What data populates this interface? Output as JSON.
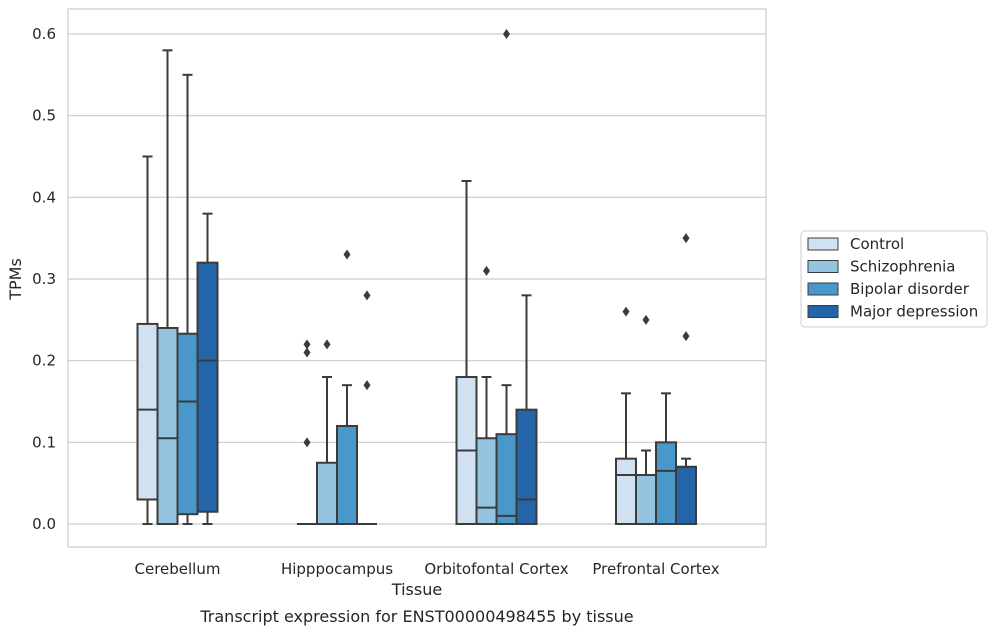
{
  "chart_data": {
    "type": "box",
    "title": "",
    "caption": "Transcript expression for ENST00000498455 by tissue",
    "xlabel": "Tissue",
    "ylabel": "TPMs",
    "ylim": [
      -0.03,
      0.63
    ],
    "yticks": [
      "0.0",
      "0.1",
      "0.2",
      "0.3",
      "0.4",
      "0.5",
      "0.6"
    ],
    "grid": "horizontal",
    "legend_position": "right",
    "categories": [
      "Cerebellum",
      "Hipppocampus",
      "Orbitofontal Cortex",
      "Prefrontal Cortex"
    ],
    "series": [
      {
        "name": "Control",
        "color": "#d0e1f2",
        "boxes": [
          {
            "min": 0.0,
            "q1": 0.03,
            "median": 0.14,
            "q3": 0.245,
            "max": 0.45,
            "outliers": []
          },
          {
            "min": 0.0,
            "q1": 0.0,
            "median": 0.0,
            "q3": 0.0,
            "max": 0.0,
            "outliers": [
              0.1,
              0.21,
              0.22
            ]
          },
          {
            "min": 0.0,
            "q1": 0.0,
            "median": 0.09,
            "q3": 0.18,
            "max": 0.42,
            "outliers": []
          },
          {
            "min": 0.0,
            "q1": 0.0,
            "median": 0.06,
            "q3": 0.08,
            "max": 0.16,
            "outliers": [
              0.26
            ]
          }
        ]
      },
      {
        "name": "Schizophrenia",
        "color": "#94c4df",
        "boxes": [
          {
            "min": 0.0,
            "q1": 0.0,
            "median": 0.105,
            "q3": 0.24,
            "max": 0.58,
            "outliers": []
          },
          {
            "min": 0.0,
            "q1": 0.0,
            "median": 0.0,
            "q3": 0.075,
            "max": 0.18,
            "outliers": [
              0.22
            ]
          },
          {
            "min": 0.0,
            "q1": 0.0,
            "median": 0.02,
            "q3": 0.105,
            "max": 0.18,
            "outliers": [
              0.31
            ]
          },
          {
            "min": 0.0,
            "q1": 0.0,
            "median": 0.06,
            "q3": 0.06,
            "max": 0.09,
            "outliers": [
              0.25
            ]
          }
        ]
      },
      {
        "name": "Bipolar disorder",
        "color": "#4a98c9",
        "boxes": [
          {
            "min": 0.0,
            "q1": 0.012,
            "median": 0.15,
            "q3": 0.233,
            "max": 0.55,
            "outliers": []
          },
          {
            "min": 0.0,
            "q1": 0.0,
            "median": 0.0,
            "q3": 0.12,
            "max": 0.17,
            "outliers": [
              0.33
            ]
          },
          {
            "min": 0.0,
            "q1": 0.0,
            "median": 0.01,
            "q3": 0.11,
            "max": 0.17,
            "outliers": [
              0.6
            ]
          },
          {
            "min": 0.0,
            "q1": 0.0,
            "median": 0.065,
            "q3": 0.1,
            "max": 0.16,
            "outliers": []
          }
        ]
      },
      {
        "name": "Major depression",
        "color": "#2464a8",
        "boxes": [
          {
            "min": 0.0,
            "q1": 0.015,
            "median": 0.2,
            "q3": 0.32,
            "max": 0.38,
            "outliers": []
          },
          {
            "min": 0.0,
            "q1": 0.0,
            "median": 0.0,
            "q3": 0.0,
            "max": 0.0,
            "outliers": [
              0.17,
              0.28
            ]
          },
          {
            "min": 0.0,
            "q1": 0.0,
            "median": 0.03,
            "q3": 0.14,
            "max": 0.28,
            "outliers": []
          },
          {
            "min": 0.0,
            "q1": 0.0,
            "median": 0.07,
            "q3": 0.07,
            "max": 0.08,
            "outliers": [
              0.23,
              0.35
            ]
          }
        ]
      }
    ]
  }
}
